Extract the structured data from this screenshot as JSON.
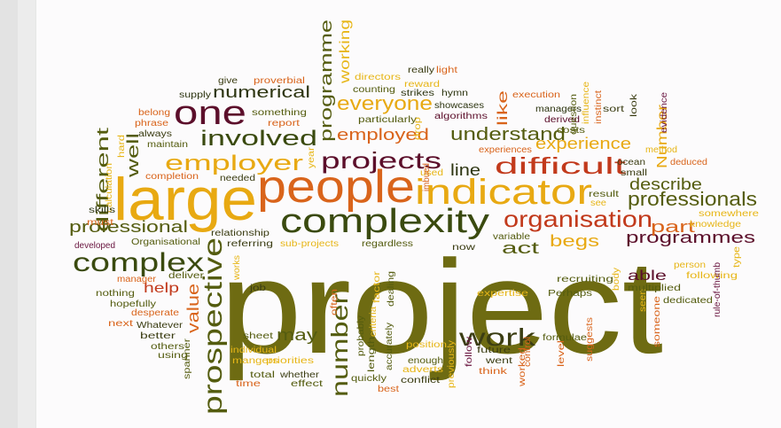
{
  "colors": {
    "olive": "#6e6b12",
    "darkOlive": "#545c0f",
    "green": "#3a4a0f",
    "darkGreen": "#2e3612",
    "orange": "#e2831e",
    "darkOrange": "#d9641b",
    "red": "#c23a1c",
    "amber": "#e8a912",
    "gold": "#e7b617",
    "yellow": "#e9c22a",
    "maroon": "#5c0f2b",
    "purple": "#6a1640",
    "dark": "#3b3d13"
  },
  "words": [
    {
      "t": "project",
      "c": "olive"
    },
    {
      "t": "large",
      "c": "amber"
    },
    {
      "t": "people",
      "c": "darkOrange"
    },
    {
      "t": "indicator",
      "c": "amber"
    },
    {
      "t": "complexity",
      "c": "green"
    },
    {
      "t": "prospective",
      "c": "darkOlive"
    },
    {
      "t": "complex",
      "c": "green"
    },
    {
      "t": "one",
      "c": "maroon"
    },
    {
      "t": "involved",
      "c": "green"
    },
    {
      "t": "employer",
      "c": "amber"
    },
    {
      "t": "projects",
      "c": "maroon"
    },
    {
      "t": "difficult",
      "c": "red"
    },
    {
      "t": "organisation",
      "c": "red"
    },
    {
      "t": "work",
      "c": "dark"
    },
    {
      "t": "number",
      "c": "darkOlive"
    },
    {
      "t": "professionals",
      "c": "darkOlive"
    },
    {
      "t": "understand",
      "c": "darkOlive"
    },
    {
      "t": "everyone",
      "c": "amber"
    },
    {
      "t": "employed",
      "c": "darkOrange"
    },
    {
      "t": "experience",
      "c": "amber"
    },
    {
      "t": "numerical",
      "c": "darkGreen"
    },
    {
      "t": "programme",
      "c": "darkOlive"
    },
    {
      "t": "working",
      "c": "gold"
    },
    {
      "t": "professional",
      "c": "darkOlive"
    },
    {
      "t": "programmes",
      "c": "maroon"
    },
    {
      "t": "describe",
      "c": "darkOlive"
    },
    {
      "t": "different",
      "c": "darkOlive"
    },
    {
      "t": "well",
      "c": "darkOlive"
    },
    {
      "t": "line",
      "c": "darkGreen"
    },
    {
      "t": "part",
      "c": "darkOrange"
    },
    {
      "t": "act",
      "c": "darkOlive"
    },
    {
      "t": "begs",
      "c": "amber"
    },
    {
      "t": "value",
      "c": "darkOrange"
    },
    {
      "t": "may",
      "c": "darkOlive"
    },
    {
      "t": "help",
      "c": "red"
    },
    {
      "t": "able",
      "c": "maroon"
    },
    {
      "t": "like",
      "c": "darkOrange"
    },
    {
      "t": "Number",
      "c": "amber"
    },
    {
      "t": "give",
      "c": "dark"
    },
    {
      "t": "proverbial",
      "c": "darkOrange"
    },
    {
      "t": "directors",
      "c": "gold"
    },
    {
      "t": "reward",
      "c": "gold"
    },
    {
      "t": "really",
      "c": "dark"
    },
    {
      "t": "light",
      "c": "darkOrange"
    },
    {
      "t": "supply",
      "c": "darkGreen"
    },
    {
      "t": "counting",
      "c": "darkOlive"
    },
    {
      "t": "strikes",
      "c": "darkGreen"
    },
    {
      "t": "hymn",
      "c": "darkGreen"
    },
    {
      "t": "execution",
      "c": "darkOrange"
    },
    {
      "t": "belong",
      "c": "darkOrange"
    },
    {
      "t": "something",
      "c": "darkOlive"
    },
    {
      "t": "report",
      "c": "darkOrange"
    },
    {
      "t": "particularly",
      "c": "darkOlive"
    },
    {
      "t": "algorithms",
      "c": "maroon"
    },
    {
      "t": "showcases",
      "c": "darkGreen"
    },
    {
      "t": "managers",
      "c": "darkGreen"
    },
    {
      "t": "derived",
      "c": "maroon"
    },
    {
      "t": "costs",
      "c": "darkOlive"
    },
    {
      "t": "question",
      "c": "darkOlive"
    },
    {
      "t": "influence",
      "c": "gold"
    },
    {
      "t": "instinct",
      "c": "darkOrange"
    },
    {
      "t": "sort",
      "c": "dark"
    },
    {
      "t": "look",
      "c": "dark"
    },
    {
      "t": "evidence",
      "c": "purple"
    },
    {
      "t": "phrase",
      "c": "darkOrange"
    },
    {
      "t": "always",
      "c": "dark"
    },
    {
      "t": "maintain",
      "c": "darkOlive"
    },
    {
      "t": "hard",
      "c": "gold"
    },
    {
      "t": "year",
      "c": "gold"
    },
    {
      "t": "drop",
      "c": "gold"
    },
    {
      "t": "experiences",
      "c": "darkOrange"
    },
    {
      "t": "ocean",
      "c": "dark"
    },
    {
      "t": "small",
      "c": "dark"
    },
    {
      "t": "method",
      "c": "gold"
    },
    {
      "t": "deduced",
      "c": "darkOrange"
    },
    {
      "t": "completion",
      "c": "darkOrange"
    },
    {
      "t": "calculation",
      "c": "gold"
    },
    {
      "t": "needed",
      "c": "dark"
    },
    {
      "t": "used",
      "c": "gold"
    },
    {
      "t": "imbued",
      "c": "darkOrange"
    },
    {
      "t": "result",
      "c": "darkOlive"
    },
    {
      "t": "see",
      "c": "gold"
    },
    {
      "t": "skills",
      "c": "darkGreen"
    },
    {
      "t": "must",
      "c": "darkOrange"
    },
    {
      "t": "somewhere",
      "c": "gold"
    },
    {
      "t": "relationship",
      "c": "dark"
    },
    {
      "t": "knowledge",
      "c": "gold"
    },
    {
      "t": "developed",
      "c": "purple"
    },
    {
      "t": "Organisational",
      "c": "darkOlive"
    },
    {
      "t": "referring",
      "c": "dark"
    },
    {
      "t": "sub-projects",
      "c": "gold"
    },
    {
      "t": "regardless",
      "c": "darkOlive"
    },
    {
      "t": "now",
      "c": "dark"
    },
    {
      "t": "variable",
      "c": "darkOlive"
    },
    {
      "t": "recruiting",
      "c": "darkOlive"
    },
    {
      "t": "person",
      "c": "gold"
    },
    {
      "t": "type",
      "c": "gold"
    },
    {
      "t": "following",
      "c": "gold"
    },
    {
      "t": "rule-of-thumb",
      "c": "purple"
    },
    {
      "t": "manager",
      "c": "darkOrange"
    },
    {
      "t": "deliver",
      "c": "darkOlive"
    },
    {
      "t": "works",
      "c": "gold"
    },
    {
      "t": "job",
      "c": "dark"
    },
    {
      "t": "often",
      "c": "darkOrange"
    },
    {
      "t": "factor",
      "c": "gold"
    },
    {
      "t": "dealing",
      "c": "darkOlive"
    },
    {
      "t": "expertise",
      "c": "gold"
    },
    {
      "t": "Perhaps",
      "c": "darkOlive"
    },
    {
      "t": "body",
      "c": "gold"
    },
    {
      "t": "seen",
      "c": "gold"
    },
    {
      "t": "multiplied",
      "c": "darkOlive"
    },
    {
      "t": "dedicated",
      "c": "darkOlive"
    },
    {
      "t": "nothing",
      "c": "darkOlive"
    },
    {
      "t": "hopefully",
      "c": "darkOlive"
    },
    {
      "t": "desperate",
      "c": "darkOrange"
    },
    {
      "t": "next",
      "c": "darkOrange"
    },
    {
      "t": "Whatever",
      "c": "dark"
    },
    {
      "t": "better",
      "c": "dark"
    },
    {
      "t": "others",
      "c": "darkOlive"
    },
    {
      "t": "using",
      "c": "darkOlive"
    },
    {
      "t": "spanner",
      "c": "darkOlive"
    },
    {
      "t": "sheet",
      "c": "darkOlive"
    },
    {
      "t": "individual",
      "c": "gold"
    },
    {
      "t": "mangers",
      "c": "gold"
    },
    {
      "t": "priorities",
      "c": "gold"
    },
    {
      "t": "total",
      "c": "darkOlive"
    },
    {
      "t": "whether",
      "c": "dark"
    },
    {
      "t": "time",
      "c": "darkOrange"
    },
    {
      "t": "effect",
      "c": "darkOlive"
    },
    {
      "t": "probably",
      "c": "darkOlive"
    },
    {
      "t": "criteria",
      "c": "gold"
    },
    {
      "t": "length",
      "c": "darkOlive"
    },
    {
      "t": "accurately",
      "c": "darkOlive"
    },
    {
      "t": "quickly",
      "c": "darkOlive"
    },
    {
      "t": "best",
      "c": "darkOrange"
    },
    {
      "t": "position",
      "c": "gold"
    },
    {
      "t": "enough",
      "c": "darkOlive"
    },
    {
      "t": "adverts",
      "c": "gold"
    },
    {
      "t": "conflict",
      "c": "dark"
    },
    {
      "t": "previously",
      "c": "gold"
    },
    {
      "t": "follow",
      "c": "purple"
    },
    {
      "t": "future",
      "c": "dark"
    },
    {
      "t": "went",
      "c": "dark"
    },
    {
      "t": "think",
      "c": "darkOrange"
    },
    {
      "t": "control",
      "c": "darkOrange"
    },
    {
      "t": "worked",
      "c": "darkOrange"
    },
    {
      "t": "formulae",
      "c": "darkOlive"
    },
    {
      "t": "level",
      "c": "darkOrange"
    },
    {
      "t": "suggests",
      "c": "darkOrange"
    },
    {
      "t": "someone",
      "c": "darkOrange"
    }
  ]
}
